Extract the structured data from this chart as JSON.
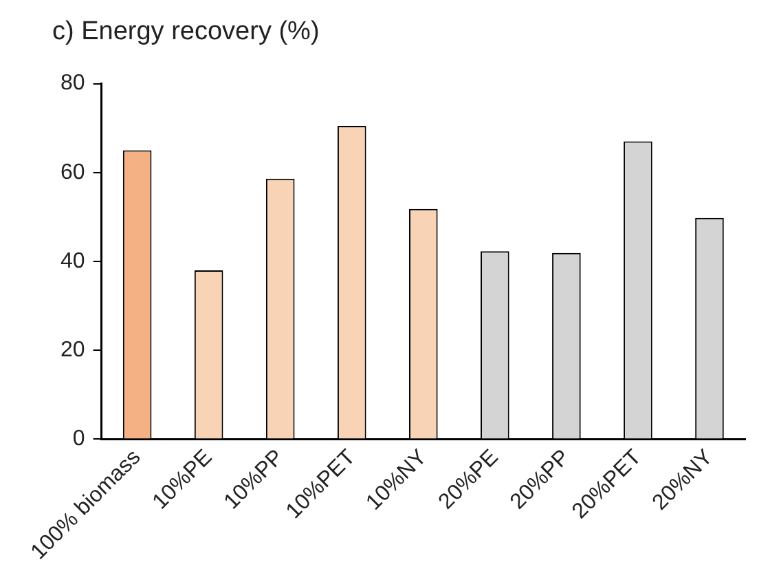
{
  "chart_data": {
    "type": "bar",
    "title": "c) Energy recovery (%)",
    "categories": [
      "100% biomass",
      "10%PE",
      "10%PP",
      "10%PET",
      "10%NY",
      "20%PE",
      "20%PP",
      "20%PET",
      "20%NY"
    ],
    "values": [
      65,
      38,
      58.6,
      70.5,
      51.8,
      42.3,
      41.9,
      67,
      49.8
    ],
    "colors": [
      "#f4b183",
      "#f9d3b5",
      "#f9d3b5",
      "#f9d3b5",
      "#f9d3b5",
      "#d4d4d4",
      "#d4d4d4",
      "#d4d4d4",
      "#d4d4d4"
    ],
    "ylim": [
      0,
      80
    ],
    "yticks": [
      0,
      20,
      40,
      60,
      80
    ],
    "grid": false,
    "legend": false
  }
}
